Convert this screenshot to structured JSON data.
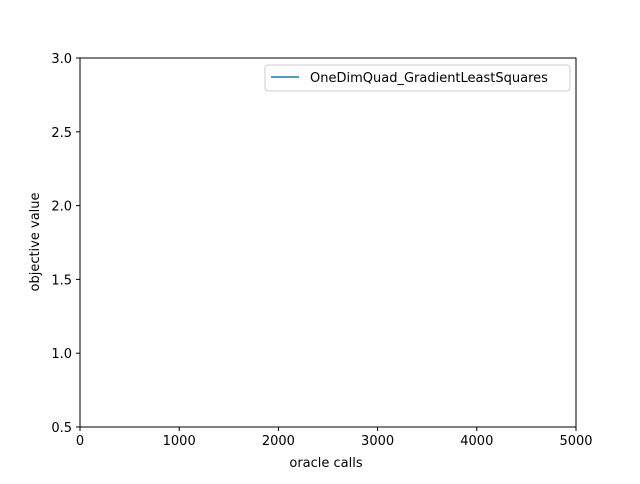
{
  "chart_data": {
    "type": "line",
    "title": "",
    "xlabel": "oracle calls",
    "ylabel": "objective value",
    "xlim": [
      0,
      5000
    ],
    "ylim": [
      0.5,
      3.0
    ],
    "xticks": [
      0,
      1000,
      2000,
      3000,
      4000,
      5000
    ],
    "xtick_labels": [
      "0",
      "1000",
      "2000",
      "3000",
      "4000",
      "5000"
    ],
    "yticks": [
      0.5,
      1.0,
      1.5,
      2.0,
      2.5,
      3.0
    ],
    "ytick_labels": [
      "0.5",
      "1.0",
      "1.5",
      "2.0",
      "2.5",
      "3.0"
    ],
    "grid": false,
    "legend": {
      "location": "upper right",
      "entries": [
        {
          "label": "OneDimQuad_GradientLeastSquares",
          "color": "#1f77b4"
        }
      ]
    },
    "series": [
      {
        "name": "OneDimQuad_GradientLeastSquares",
        "color": "#1f77b4",
        "x": [],
        "y": []
      }
    ]
  }
}
